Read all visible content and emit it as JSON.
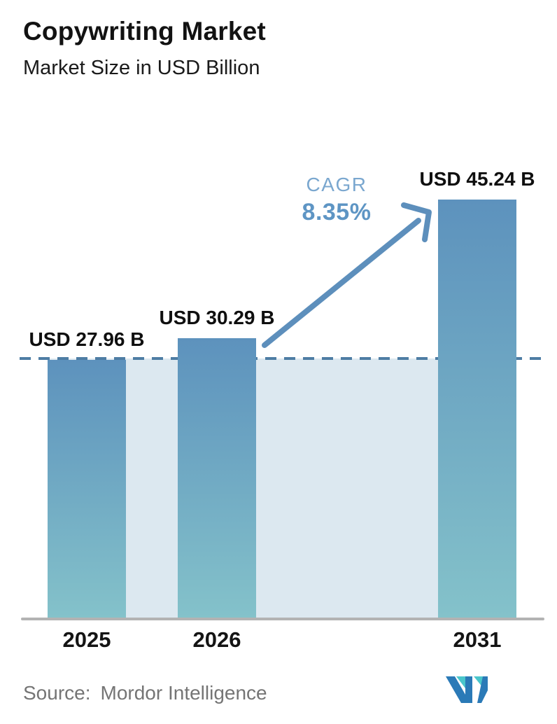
{
  "header": {
    "title": "Copywriting Market",
    "subtitle": "Market Size in USD Billion"
  },
  "chart_data": {
    "type": "bar",
    "categories": [
      "2025",
      "2026",
      "2031"
    ],
    "values": [
      27.96,
      30.29,
      45.24
    ],
    "bar_labels": [
      "USD 27.96 B",
      "USD 30.29 B",
      "USD 45.24 B"
    ],
    "title": "Copywriting Market",
    "ylabel": "Market Size in USD Billion",
    "ylim": [
      0,
      45.24
    ],
    "grid": false,
    "legend": false,
    "annotations": {
      "cagr_label": "CAGR",
      "cagr_value": "8.35%"
    },
    "reference_line": {
      "value": 27.96,
      "style": "dashed",
      "note": "horizontal dashed line at 2025 level with shaded band below"
    },
    "colors": {
      "bar_gradient_top": "#5d92bd",
      "bar_gradient_bottom": "#84c2ca",
      "shaded_band": "#dce8f0",
      "dashed_line": "#4e7da4",
      "axis_line": "#b3b3b3",
      "arrow": "#5d8fbc",
      "cagr_label_color": "#7aa7cf",
      "cagr_value_color": "#5e95c4",
      "label_text": "#0f0f0f"
    }
  },
  "footer": {
    "source_label": "Source:",
    "source_name": "Mordor Intelligence",
    "logo_name": "mordor-intelligence-logo",
    "logo_colors": {
      "blue": "#2b7ab7",
      "teal": "#4ac6cb"
    }
  }
}
